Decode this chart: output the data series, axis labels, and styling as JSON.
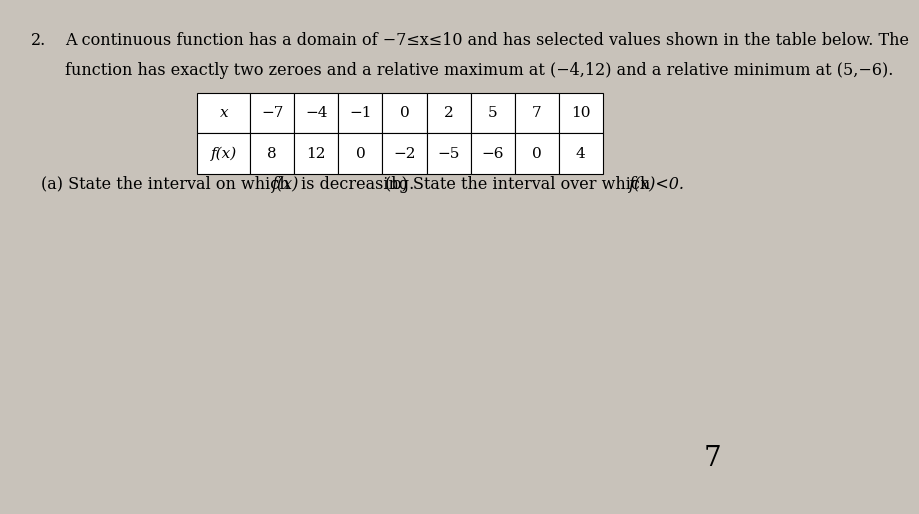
{
  "background_color": "#c8c2ba",
  "problem_number": "2.",
  "problem_text_line1": "A continuous function has a domain of −7≤x≤10 and has selected values shown in the table below. The",
  "problem_text_line2": "function has exactly two zeroes and a relative maximum at (−4,12) and a relative minimum at (5,−6).",
  "table_x_label": "x",
  "table_fx_label": "f(x)",
  "x_values": [
    "−7",
    "−4",
    "−1",
    "0",
    "2",
    "5",
    "7",
    "10"
  ],
  "fx_values": [
    "8",
    "12",
    "0",
    "−2",
    "−5",
    "−6",
    "0",
    "4"
  ],
  "part_a_text": "(a) State the interval on which ",
  "part_a_fx": "f(x)",
  "part_a_end": " is decreasing.",
  "part_b_text": "(b) State the interval over which ",
  "part_b_fx": "f(x)<0.",
  "page_number": "7",
  "main_fontsize": 11.5,
  "table_fontsize": 11,
  "page_num_fontsize": 20
}
